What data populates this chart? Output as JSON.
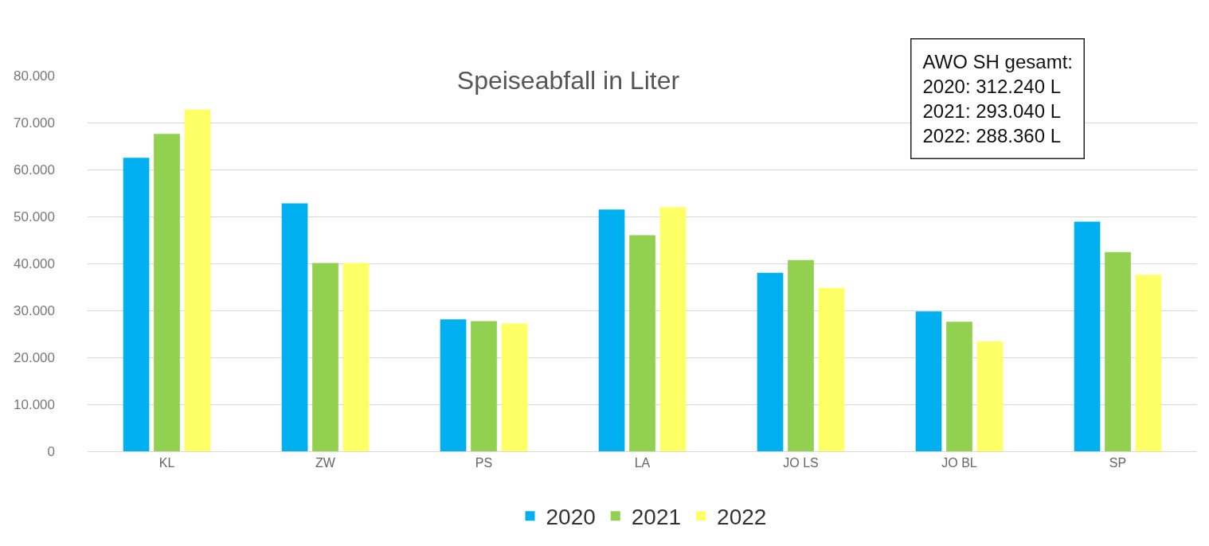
{
  "chart_data": {
    "type": "bar",
    "title": "Speiseabfall in Liter",
    "categories": [
      "KL",
      "ZW",
      "PS",
      "LA",
      "JO LS",
      "JO BL",
      "SP"
    ],
    "series": [
      {
        "name": "2020",
        "color": "#00b0f0",
        "values": [
          62500,
          52800,
          28100,
          51500,
          38000,
          29800,
          48900
        ]
      },
      {
        "name": "2021",
        "color": "#92d050",
        "values": [
          67600,
          40100,
          27700,
          46000,
          40700,
          27600,
          42400
        ]
      },
      {
        "name": "2022",
        "color": "#ffff66",
        "values": [
          72800,
          40100,
          27200,
          52000,
          34800,
          23400,
          37600
        ]
      }
    ],
    "ylim": [
      0,
      80000
    ],
    "yticks": [
      {
        "value": 0,
        "label": "0"
      },
      {
        "value": 10000,
        "label": "10.000"
      },
      {
        "value": 20000,
        "label": "20.000"
      },
      {
        "value": 30000,
        "label": "30.000"
      },
      {
        "value": 40000,
        "label": "40.000"
      },
      {
        "value": 50000,
        "label": "50.000"
      },
      {
        "value": 60000,
        "label": "60.000"
      },
      {
        "value": 70000,
        "label": "70.000"
      },
      {
        "value": 80000,
        "label": "80.000"
      }
    ],
    "grid": "y",
    "legend": "bottom",
    "annotations": [
      "AWO SH gesamt:\n2020: 312.240 L\n2021: 293.040 L\n2022: 288.360 L"
    ]
  }
}
